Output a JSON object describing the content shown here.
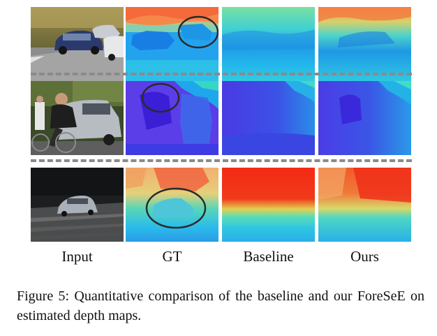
{
  "figure": {
    "columns": [
      {
        "label": "Input",
        "icon": "photo-icon"
      },
      {
        "label": "GT",
        "icon": "depth-map-icon"
      },
      {
        "label": "Baseline",
        "icon": "depth-map-icon"
      },
      {
        "label": "Ours",
        "icon": "depth-map-icon"
      }
    ],
    "rows": [
      {
        "scene": "parked cars on street",
        "gt_highlight": "car region circled"
      },
      {
        "scene": "cyclist in front of car",
        "gt_highlight": "cyclist head circled"
      },
      {
        "scene": "car on highway at night",
        "gt_highlight": "car region circled"
      }
    ],
    "palette": {
      "far": "#3a1fd6",
      "mid": "#22c8e8",
      "near": "#f02a14",
      "circle": "#2a2a2a",
      "separator": "#8a8a8a"
    }
  },
  "caption": {
    "text": "Figure 5: Quantitative comparison of the baseline and our ForeSeE on estimated depth maps."
  }
}
